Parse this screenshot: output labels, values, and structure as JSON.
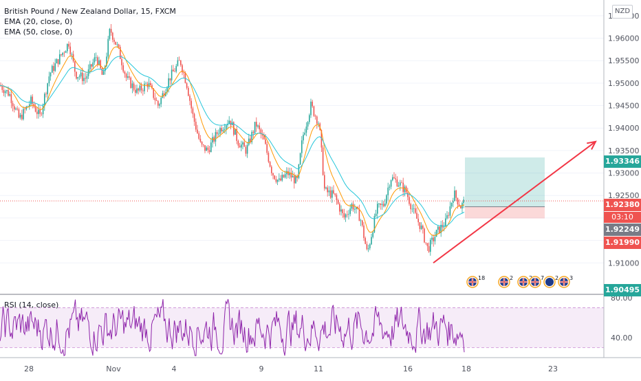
{
  "instrument": {
    "title": "British Pound / New Zealand Dollar, 15, FXCM",
    "indicators": [
      "EMA (20, close, 0)",
      "EMA (50, close, 0)"
    ],
    "currency": "NZD"
  },
  "rsi": {
    "label": "RSI (14, close)",
    "ticks": [
      "80.00",
      "40.00"
    ],
    "band_upper": 70,
    "band_lower": 30
  },
  "price_axis": {
    "ticks": [
      "1.96500",
      "1.96000",
      "1.95500",
      "1.95000",
      "1.94500",
      "1.94000",
      "1.93500",
      "1.93000",
      "1.92500",
      "1.92000",
      "1.91500",
      "1.91000"
    ]
  },
  "price_tags": [
    {
      "value": "1.93346",
      "color": "#26a69a"
    },
    {
      "value": "1.92380",
      "color": "#ef5350"
    },
    {
      "value": "03:10",
      "color": "#ef5350"
    },
    {
      "value": "1.92249",
      "color": "#787b86"
    },
    {
      "value": "1.91990",
      "color": "#ef5350"
    },
    {
      "value": "1.90495",
      "color": "#26a69a"
    }
  ],
  "time_axis": {
    "labels": [
      "28",
      "Nov",
      "4",
      "9",
      "11",
      "16",
      "18",
      "23"
    ]
  },
  "events": [
    {
      "icon": "uk-flag-icon",
      "count": "18"
    },
    {
      "icon": "uk-flag-icon",
      "count": "2"
    },
    {
      "icon": "uk-flag-icon",
      "count": "2"
    },
    {
      "icon": "uk-flag-icon",
      "count": "7"
    },
    {
      "icon": "nz-flag-icon",
      "count": "2"
    },
    {
      "icon": "uk-flag-icon",
      "count": "3"
    }
  ],
  "chart_data": {
    "type": "candlestick",
    "interval": "15 min",
    "ylim": [
      1.903,
      1.9685
    ],
    "path": [
      [
        0,
        1.9495
      ],
      [
        14,
        1.9475
      ],
      [
        28,
        1.942
      ],
      [
        45,
        1.946
      ],
      [
        58,
        1.9425
      ],
      [
        72,
        1.952
      ],
      [
        88,
        1.956
      ],
      [
        100,
        1.959
      ],
      [
        110,
        1.952
      ],
      [
        124,
        1.951
      ],
      [
        140,
        1.956
      ],
      [
        150,
        1.951
      ],
      [
        160,
        1.962
      ],
      [
        172,
        1.9575
      ],
      [
        184,
        1.951
      ],
      [
        200,
        1.948
      ],
      [
        215,
        1.95
      ],
      [
        230,
        1.945
      ],
      [
        246,
        1.951
      ],
      [
        262,
        1.955
      ],
      [
        272,
        1.9495
      ],
      [
        280,
        1.943
      ],
      [
        292,
        1.936
      ],
      [
        302,
        1.935
      ],
      [
        318,
        1.9395
      ],
      [
        334,
        1.942
      ],
      [
        346,
        1.937
      ],
      [
        358,
        1.935
      ],
      [
        372,
        1.941
      ],
      [
        384,
        1.937
      ],
      [
        396,
        1.93
      ],
      [
        406,
        1.928
      ],
      [
        418,
        1.93
      ],
      [
        432,
        1.928
      ],
      [
        440,
        1.938
      ],
      [
        452,
        1.945
      ],
      [
        464,
        1.941
      ],
      [
        472,
        1.926
      ],
      [
        486,
        1.925
      ],
      [
        500,
        1.92
      ],
      [
        512,
        1.923
      ],
      [
        524,
        1.92
      ],
      [
        534,
        1.912
      ],
      [
        548,
        1.922
      ],
      [
        558,
        1.923
      ],
      [
        568,
        1.929
      ],
      [
        578,
        1.928
      ],
      [
        590,
        1.926
      ],
      [
        602,
        1.921
      ],
      [
        612,
        1.918
      ],
      [
        622,
        1.913
      ],
      [
        636,
        1.917
      ],
      [
        648,
        1.919
      ],
      [
        660,
        1.9255
      ],
      [
        670,
        1.9225
      ],
      [
        676,
        1.9238
      ]
    ],
    "ema20_offset": 0.0004,
    "ema50_offset": -0.0006,
    "position": {
      "type": "long",
      "entry": 1.92249,
      "target": 1.93346,
      "stop": 1.9199,
      "x_start": 676,
      "x_end": 792
    },
    "trend_arrow": {
      "x1": 630,
      "y1": 1.91,
      "x2": 866,
      "y2": 1.937
    },
    "rsi_range": [
      20,
      82
    ]
  }
}
